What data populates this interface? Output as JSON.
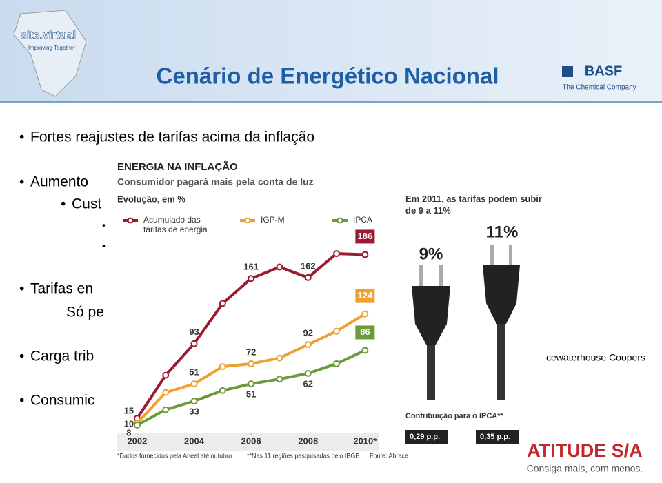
{
  "header": {
    "title": "Cenário de Energético Nacional",
    "logo_left": "site.virtual",
    "logo_left_tagline": "Improving Together",
    "logo_right": "BASF",
    "logo_right_tagline": "The Chemical Company"
  },
  "bullets": [
    "Fortes reajustes de tarifas acima da inflação",
    "Aumento",
    "Cust",
    "Tarifas en",
    "Só pe",
    "Carga trib",
    "Consumic"
  ],
  "side_note": "cewaterhouse Coopers",
  "plug_panel": {
    "heading": "Em 2011, as tarifas podem subir de 9 a 11%",
    "left_plug": "9%",
    "right_plug": "11%",
    "footer": "Contribuição para o IPCA**",
    "left_value": "0,29 p.p.",
    "right_value": "0,35 p.p."
  },
  "footer_logo": {
    "name": "ATITUDE S/A",
    "tagline": "Consiga mais, com menos."
  },
  "chart_data": {
    "type": "line",
    "title": "ENERGIA NA INFLAÇÃO",
    "subtitle": "Consumidor pagará mais pela conta de luz",
    "y_label": "Evolução, em %",
    "x": [
      2002,
      2003,
      2004,
      2005,
      2006,
      2007,
      2008,
      2009,
      2010
    ],
    "xlim": [
      2001.3,
      2010.5
    ],
    "xticks": [
      2002,
      2004,
      2006,
      2008,
      {
        "value": 2010,
        "label": "2010*"
      }
    ],
    "ylim": [
      0,
      200
    ],
    "series": [
      {
        "name": "Acumulado das tarifas de energia",
        "color": "#9b1b30",
        "values": [
          15,
          60,
          93,
          135,
          161,
          173,
          162,
          187,
          186
        ],
        "value_labels": [
          "15",
          null,
          "93",
          null,
          "161",
          null,
          "162",
          null,
          "186"
        ]
      },
      {
        "name": "IGP-M",
        "color": "#f0a030",
        "values": [
          10,
          42,
          51,
          69,
          72,
          78,
          92,
          106,
          124
        ],
        "value_labels": [
          "10",
          null,
          "51",
          null,
          "72",
          null,
          "92",
          null,
          "124"
        ]
      },
      {
        "name": "IPCA",
        "color": "#6a9a3a",
        "values": [
          8,
          24,
          33,
          44,
          51,
          56,
          62,
          72,
          86
        ],
        "value_labels": [
          "8",
          null,
          "33",
          null,
          "51",
          null,
          "62",
          null,
          "86"
        ]
      }
    ],
    "notes": [
      "*Dados fornecidos pela Aneel até outubro",
      "**Nas 11 regiões pesquisadas pelo IBGE",
      "Fonte: Abrace"
    ]
  }
}
